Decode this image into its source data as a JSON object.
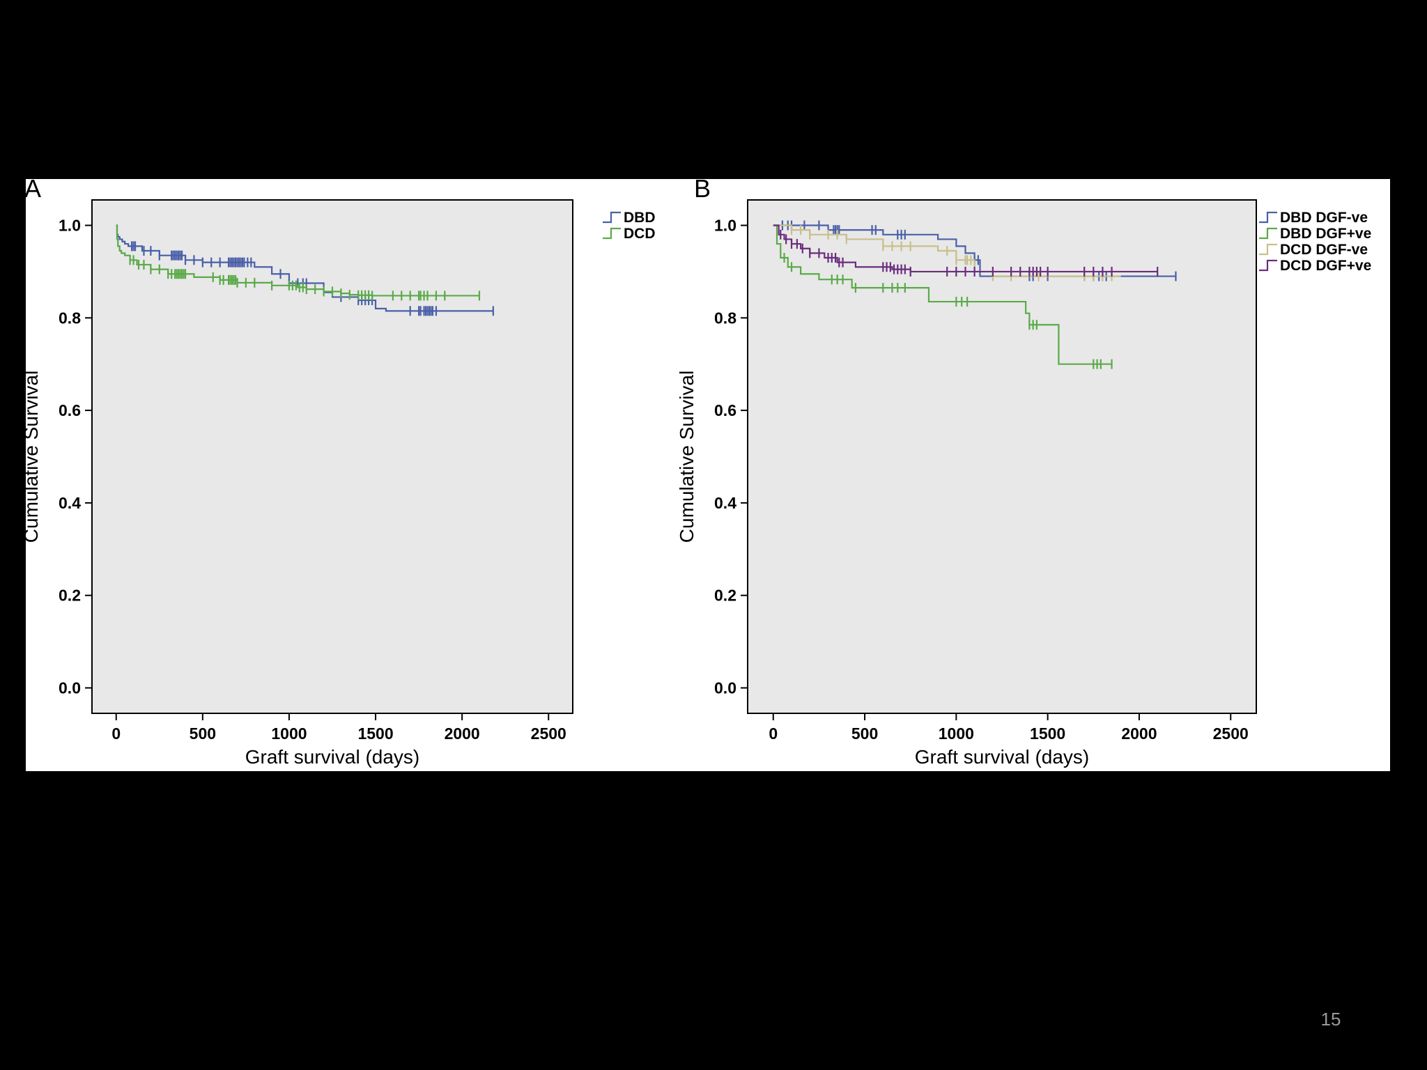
{
  "slide": {
    "page_number": "15",
    "background": "#000000",
    "figure_background": "#ffffff",
    "plot_background": "#e8e8e8"
  },
  "chart_data": [
    {
      "type": "line",
      "subtype": "kaplan-meier",
      "panel_label": "A",
      "title": "",
      "xlabel": "Graft survival (days)",
      "ylabel": "Cumulative Survival",
      "xlim": [
        -140,
        2640
      ],
      "ylim": [
        -0.055,
        1.055
      ],
      "xticks": [
        "0",
        "500",
        "1000",
        "1500",
        "2000",
        "2500"
      ],
      "yticks": [
        "0.0",
        "0.2",
        "0.4",
        "0.6",
        "0.8",
        "1.0"
      ],
      "grid": false,
      "legend_position": "right",
      "series": [
        {
          "name": "DBD",
          "color": "#4a5fa8",
          "x": [
            0,
            5,
            10,
            20,
            35,
            50,
            70,
            150,
            250,
            400,
            500,
            800,
            900,
            1000,
            1200,
            1250,
            1400,
            1500,
            1560,
            2180
          ],
          "y": [
            1.0,
            0.98,
            0.975,
            0.97,
            0.965,
            0.96,
            0.955,
            0.945,
            0.935,
            0.925,
            0.92,
            0.91,
            0.895,
            0.875,
            0.855,
            0.845,
            0.838,
            0.82,
            0.815,
            0.815
          ],
          "censored_x": [
            90,
            100,
            110,
            160,
            200,
            250,
            320,
            330,
            340,
            350,
            360,
            370,
            380,
            400,
            450,
            500,
            550,
            600,
            650,
            660,
            670,
            680,
            690,
            700,
            710,
            720,
            730,
            740,
            760,
            780,
            950,
            1000,
            1050,
            1080,
            1100,
            1300,
            1400,
            1420,
            1440,
            1460,
            1480,
            1700,
            1750,
            1760,
            1780,
            1790,
            1800,
            1810,
            1820,
            1830,
            1850,
            2180
          ]
        },
        {
          "name": "DCD",
          "color": "#5aaa48",
          "x": [
            0,
            5,
            10,
            20,
            30,
            50,
            80,
            120,
            200,
            300,
            450,
            600,
            700,
            900,
            1050,
            1100,
            1200,
            1300,
            1350,
            1400,
            1480,
            2100
          ],
          "y": [
            1.0,
            0.97,
            0.955,
            0.945,
            0.94,
            0.935,
            0.925,
            0.915,
            0.905,
            0.895,
            0.888,
            0.882,
            0.876,
            0.87,
            0.866,
            0.862,
            0.857,
            0.853,
            0.85,
            0.849,
            0.848,
            0.848
          ],
          "censored_x": [
            80,
            100,
            130,
            160,
            200,
            250,
            300,
            320,
            340,
            350,
            360,
            370,
            380,
            390,
            400,
            560,
            600,
            620,
            650,
            660,
            670,
            680,
            690,
            700,
            750,
            800,
            900,
            1000,
            1020,
            1040,
            1060,
            1080,
            1100,
            1150,
            1200,
            1250,
            1300,
            1350,
            1400,
            1420,
            1440,
            1460,
            1480,
            1600,
            1650,
            1700,
            1750,
            1760,
            1780,
            1800,
            1850,
            1900,
            2100
          ]
        }
      ]
    },
    {
      "type": "line",
      "subtype": "kaplan-meier",
      "panel_label": "B",
      "title": "",
      "xlabel": "Graft survival (days)",
      "ylabel": "Cumulative Survival",
      "xlim": [
        -140,
        2640
      ],
      "ylim": [
        -0.055,
        1.055
      ],
      "xticks": [
        "0",
        "500",
        "1000",
        "1500",
        "2000",
        "2500"
      ],
      "yticks": [
        "0.0",
        "0.2",
        "0.4",
        "0.6",
        "0.8",
        "1.0"
      ],
      "grid": false,
      "legend_position": "right",
      "series": [
        {
          "name": "DBD DGF-ve",
          "color": "#4a5fa8",
          "x": [
            0,
            300,
            600,
            900,
            1000,
            1050,
            1100,
            1130,
            2200
          ],
          "y": [
            1.0,
            0.99,
            0.98,
            0.97,
            0.955,
            0.94,
            0.925,
            0.89,
            0.89
          ],
          "censored_x": [
            50,
            80,
            100,
            170,
            250,
            330,
            340,
            350,
            360,
            540,
            560,
            680,
            700,
            720,
            1100,
            1120,
            1400,
            1420,
            1500,
            1700,
            1750,
            1780,
            1800,
            1820,
            2200
          ]
        },
        {
          "name": "DBD DGF+ve",
          "color": "#5aaa48",
          "x": [
            0,
            20,
            40,
            80,
            150,
            250,
            430,
            850,
            1380,
            1400,
            1560,
            1850
          ],
          "y": [
            1.0,
            0.96,
            0.93,
            0.91,
            0.895,
            0.883,
            0.865,
            0.835,
            0.81,
            0.785,
            0.7,
            0.7
          ],
          "censored_x": [
            60,
            100,
            320,
            350,
            380,
            450,
            600,
            650,
            680,
            720,
            1000,
            1030,
            1060,
            1400,
            1420,
            1440,
            1750,
            1770,
            1790,
            1850
          ]
        },
        {
          "name": "DCD DGF-ve",
          "color": "#c8bf8a",
          "x": [
            0,
            100,
            200,
            400,
            600,
            900,
            1000,
            1100,
            1200,
            1900
          ],
          "y": [
            1.0,
            0.99,
            0.98,
            0.97,
            0.955,
            0.945,
            0.925,
            0.9,
            0.89,
            0.89
          ],
          "censored_x": [
            100,
            150,
            200,
            300,
            350,
            400,
            600,
            650,
            700,
            750,
            950,
            1000,
            1050,
            1060,
            1080,
            1200,
            1300,
            1450,
            1700,
            1750,
            1800,
            1850
          ]
        },
        {
          "name": "DCD DGF+ve",
          "color": "#6a2d7e",
          "x": [
            0,
            30,
            60,
            100,
            150,
            200,
            280,
            350,
            450,
            650,
            750,
            2100
          ],
          "y": [
            1.0,
            0.98,
            0.97,
            0.96,
            0.95,
            0.94,
            0.93,
            0.92,
            0.91,
            0.905,
            0.9,
            0.9
          ],
          "censored_x": [
            40,
            70,
            100,
            130,
            160,
            200,
            250,
            300,
            320,
            340,
            360,
            380,
            600,
            620,
            640,
            660,
            680,
            700,
            720,
            750,
            950,
            1000,
            1050,
            1100,
            1200,
            1300,
            1350,
            1400,
            1420,
            1440,
            1460,
            1500,
            1700,
            1750,
            1800,
            1850,
            2100
          ]
        }
      ]
    }
  ]
}
